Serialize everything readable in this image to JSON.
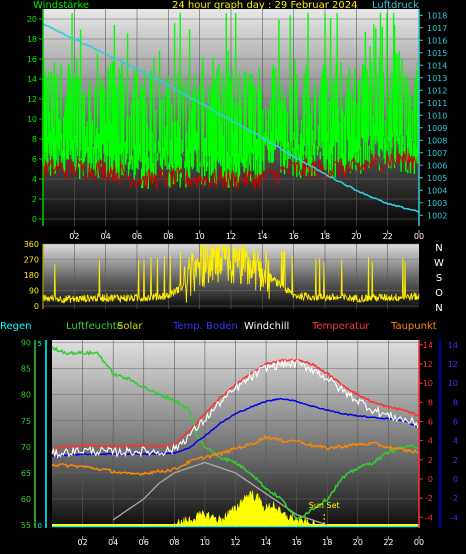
{
  "header": {
    "title": "24 hour graph day : 29 Februar 2024",
    "left_label": "Windstärke",
    "right_label": "Luftdruck"
  },
  "lower_legend": {
    "regen": "Regen",
    "luftfeuchte": "Luftfeuchte",
    "solar": "Solar",
    "temp_boden": "Temp. Boden",
    "windchill": "Windchill",
    "temperatur": "Temperatur",
    "taupunkt": "Taupunkt",
    "sun_set": "Sun Set"
  },
  "colors": {
    "windspeed": "#00ff00",
    "gust_red": "#cc0000",
    "pressure": "#33ccdd",
    "wind_dir": "#ffee00",
    "temperature": "#ff3333",
    "windchill": "#ffffff",
    "dewpoint": "#ff8800",
    "soil_temp": "#0000ee",
    "humidity": "#33cc33",
    "solar": "#ffff00",
    "solar_theory": "#aaaaaa",
    "rain": "#00ffff"
  },
  "chart_data": [
    {
      "type": "line",
      "name": "wind-pressure",
      "x_ticks": [
        "02",
        "04",
        "06",
        "08",
        "10",
        "12",
        "14",
        "16",
        "18",
        "20",
        "22",
        "00"
      ],
      "y_left_ticks": [
        "0",
        "2",
        "4",
        "6",
        "8",
        "10",
        "12",
        "14",
        "16",
        "18",
        "20"
      ],
      "y_right_ticks": [
        "1002",
        "1003",
        "1004",
        "1005",
        "1006",
        "1007",
        "1008",
        "1009",
        "1010",
        "1011",
        "1012",
        "1013",
        "1014",
        "1015",
        "1016",
        "1017",
        "1018"
      ],
      "ylim_left": [
        0,
        21
      ],
      "ylim_right": [
        1001.7,
        1018.5
      ],
      "series": [
        {
          "key": "pressure",
          "x": [
            0,
            2,
            4,
            6,
            8,
            10,
            12,
            14,
            16,
            18,
            20,
            22,
            24
          ],
          "values": [
            1017.3,
            1016.1,
            1014.9,
            1013.7,
            1012.4,
            1011.0,
            1009.6,
            1008.2,
            1006.7,
            1005.3,
            1004.0,
            1002.9,
            1002.3
          ]
        },
        {
          "key": "wind_avg",
          "x": [
            0,
            2,
            4,
            6,
            8,
            10,
            12,
            14,
            16,
            18,
            20,
            22,
            24
          ],
          "values": [
            5,
            5,
            5,
            4,
            4,
            4,
            4,
            4,
            5,
            5,
            5,
            6,
            6
          ]
        },
        {
          "key": "wind_gust",
          "x": [
            0,
            2,
            4,
            6,
            8,
            10,
            12,
            14,
            16,
            18,
            20,
            22,
            24
          ],
          "values": [
            11,
            11,
            11,
            10,
            10,
            10,
            10,
            11,
            11,
            11,
            11,
            12,
            11
          ]
        }
      ]
    },
    {
      "type": "line",
      "name": "wind-direction",
      "y_ticks": [
        "0",
        "90",
        "180",
        "270",
        "360"
      ],
      "compass": [
        "N",
        "W",
        "S",
        "O",
        "N"
      ],
      "ylim": [
        0,
        360
      ],
      "x": [
        0,
        2,
        4,
        6,
        8,
        9,
        10,
        11,
        12,
        13,
        14,
        16,
        18,
        20,
        22,
        24
      ],
      "values": [
        45,
        40,
        50,
        45,
        60,
        120,
        230,
        250,
        240,
        230,
        200,
        60,
        50,
        45,
        50,
        55
      ]
    },
    {
      "type": "line",
      "name": "temp-humidity",
      "y_left_ticks": [
        "55",
        "60",
        "65",
        "70",
        "75",
        "80",
        "85",
        "90"
      ],
      "ylim_left": [
        55,
        90.5
      ],
      "y_right_ticks": [
        "-4",
        "-2",
        "0",
        "2",
        "4",
        "6",
        "8",
        "10",
        "12",
        "14"
      ],
      "ylim_right": [
        -4.8,
        14.5
      ],
      "y_rain_ticks": [
        "0",
        "5"
      ],
      "series": [
        {
          "key": "temperature",
          "x": [
            0,
            2,
            4,
            6,
            7,
            8,
            9,
            10,
            11,
            12,
            13,
            14,
            15,
            16,
            17,
            18,
            19,
            20,
            21,
            22,
            23,
            24
          ],
          "values": [
            3.2,
            3.5,
            3.4,
            3.5,
            3.4,
            3.6,
            5.0,
            6.8,
            8.5,
            9.8,
            11.0,
            12.0,
            12.4,
            12.4,
            12.0,
            11.0,
            9.8,
            8.8,
            8.0,
            7.5,
            7.2,
            6.6
          ]
        },
        {
          "key": "windchill",
          "x": [
            0,
            2,
            4,
            6,
            7,
            8,
            9,
            10,
            11,
            12,
            13,
            14,
            15,
            16,
            17,
            18,
            19,
            20,
            21,
            22,
            23,
            24
          ],
          "values": [
            2.6,
            3.0,
            2.8,
            2.9,
            2.8,
            3.1,
            4.6,
            6.2,
            8.0,
            9.4,
            10.6,
            11.6,
            12.0,
            12.0,
            11.5,
            10.5,
            9.2,
            8.2,
            7.2,
            6.6,
            6.2,
            5.7
          ]
        },
        {
          "key": "soil_temp",
          "x": [
            0,
            2,
            4,
            6,
            8,
            9,
            10,
            11,
            12,
            13,
            14,
            15,
            16,
            17,
            18,
            19,
            20,
            21,
            22,
            23,
            24
          ],
          "values": [
            2.4,
            2.6,
            2.6,
            2.6,
            2.7,
            3.3,
            4.5,
            5.8,
            6.8,
            7.5,
            8.1,
            8.4,
            8.1,
            7.6,
            7.2,
            6.8,
            6.6,
            6.4,
            6.3,
            6.1,
            5.4
          ]
        },
        {
          "key": "dewpoint",
          "x": [
            0,
            2,
            4,
            5,
            6,
            7,
            8,
            9,
            10,
            11,
            12,
            13,
            14,
            15,
            16,
            17,
            18,
            19,
            20,
            21,
            22,
            23,
            24
          ],
          "values": [
            1.5,
            1.3,
            0.8,
            0.5,
            0.6,
            0.8,
            1.0,
            1.8,
            2.3,
            2.6,
            3.2,
            3.6,
            4.4,
            4.0,
            4.0,
            3.5,
            3.2,
            3.4,
            3.6,
            3.7,
            3.3,
            3.0,
            2.8
          ]
        },
        {
          "key": "humidity",
          "x": [
            0,
            1,
            3,
            4,
            5,
            7,
            8,
            9,
            9.5,
            10,
            11,
            12,
            13,
            14,
            15,
            16,
            17,
            18,
            19,
            20,
            21,
            22,
            23,
            24
          ],
          "values": [
            89,
            88,
            88,
            84,
            83,
            80,
            79,
            77,
            72,
            70,
            68,
            67,
            65,
            62,
            60,
            56,
            58,
            60,
            64,
            66,
            67,
            69,
            70,
            70
          ]
        },
        {
          "key": "solar_theory",
          "x": [
            4,
            5,
            6,
            7,
            8,
            9,
            10,
            11,
            12,
            13,
            14,
            15,
            16,
            17,
            18
          ],
          "values": [
            56,
            58,
            60,
            63,
            65,
            66,
            67,
            66,
            65,
            63,
            61,
            59,
            57,
            56,
            55
          ]
        },
        {
          "key": "solar",
          "x": [
            8,
            9,
            10,
            11,
            12,
            12.5,
            13,
            13.5,
            14,
            14.5,
            15,
            16,
            17
          ],
          "values": [
            55,
            56,
            57,
            56,
            58,
            60,
            61,
            60,
            58,
            59,
            57,
            56,
            55
          ]
        }
      ],
      "markers": [
        {
          "label": "Sun Set",
          "x": 17.8
        }
      ]
    }
  ]
}
